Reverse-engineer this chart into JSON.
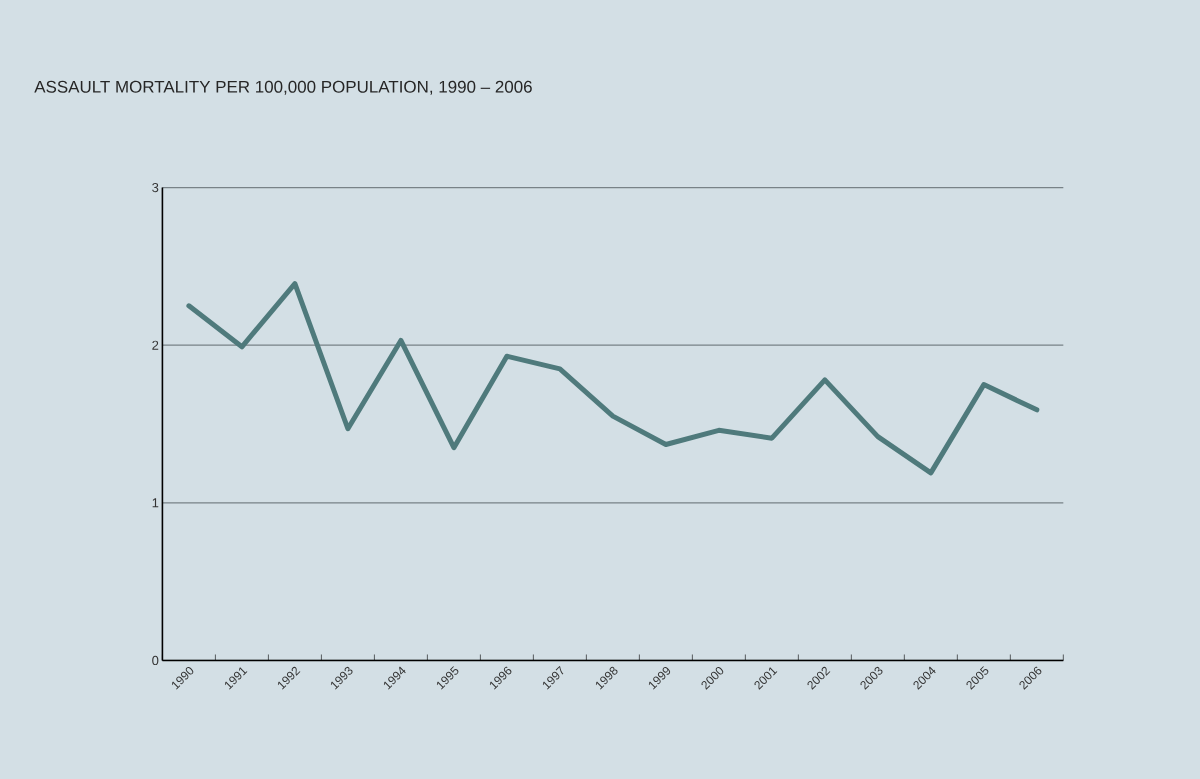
{
  "chart_data": {
    "type": "line",
    "title": "ASSAULT MORTALITY PER 100,000 POPULATION, 1990 – 2006",
    "categories": [
      "1990",
      "1991",
      "1992",
      "1993",
      "1994",
      "1995",
      "1996",
      "1997",
      "1998",
      "1999",
      "2000",
      "2001",
      "2002",
      "2003",
      "2004",
      "2005",
      "2006"
    ],
    "series": [
      {
        "color": "#4f7a7c",
        "values": [
          2.25,
          1.99,
          2.39,
          1.47,
          2.03,
          1.35,
          1.93,
          1.85,
          1.55,
          1.37,
          1.46,
          1.41,
          1.78,
          1.42,
          1.19,
          1.75,
          1.59
        ]
      }
    ],
    "ylim": [
      0,
      3
    ],
    "yticks": [
      0,
      1,
      2,
      3
    ],
    "grid": "y",
    "marker": "none",
    "line_style": "solid"
  }
}
